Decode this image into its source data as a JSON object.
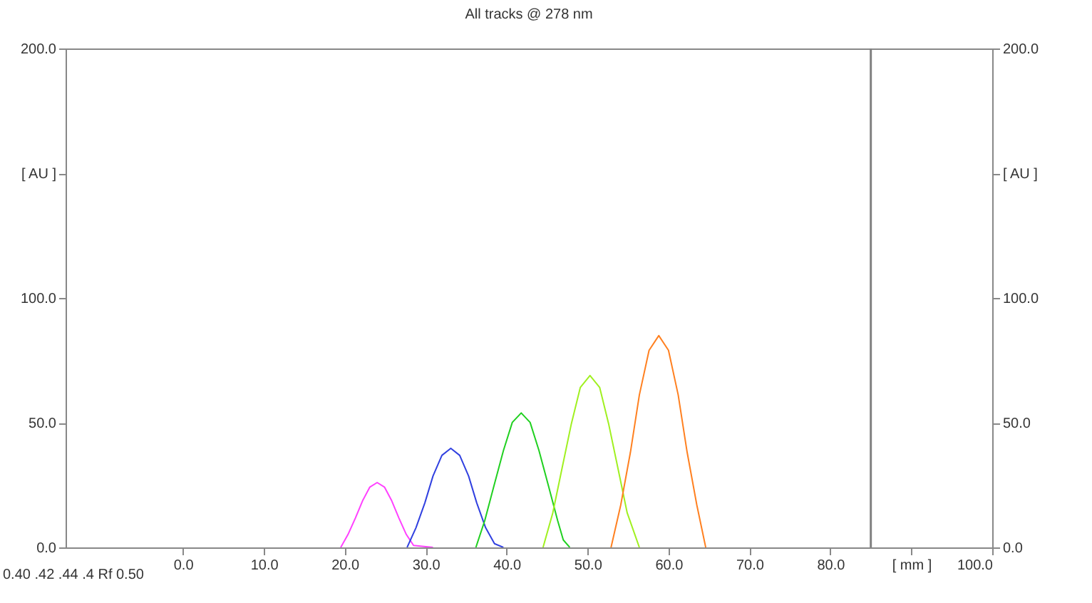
{
  "chart_data": {
    "type": "line",
    "title": "All tracks @ 278 nm",
    "xlim": [
      -14.5,
      100
    ],
    "xticks": [
      {
        "value": 0,
        "label": "0.0"
      },
      {
        "value": 10,
        "label": "10.0"
      },
      {
        "value": 20,
        "label": "20.0"
      },
      {
        "value": 30,
        "label": "30.0"
      },
      {
        "value": 40,
        "label": "40.0"
      },
      {
        "value": 50,
        "label": "50.0"
      },
      {
        "value": 60,
        "label": "60.0"
      },
      {
        "value": 70,
        "label": "70.0"
      },
      {
        "value": 80,
        "label": "80.0"
      },
      {
        "value": 90,
        "label": "[ mm ]"
      },
      {
        "value": 100,
        "label": "100.0"
      }
    ],
    "ylim": [
      0,
      200
    ],
    "yticks": [
      {
        "value": 0,
        "label": "0.0"
      },
      {
        "value": 50,
        "label": "50.0"
      },
      {
        "value": 100,
        "label": "100.0"
      },
      {
        "value": 150,
        "label": "[ AU ]"
      },
      {
        "value": 200,
        "label": "200.0"
      }
    ],
    "y2lim": [
      0,
      200
    ],
    "y2ticks": [
      {
        "value": 0,
        "label": "0.0"
      },
      {
        "value": 50,
        "label": "50.0"
      },
      {
        "value": 100,
        "label": "100.0"
      },
      {
        "value": 150,
        "label": "[ AU ]"
      },
      {
        "value": 200,
        "label": "200.0"
      }
    ],
    "grid": false,
    "ref_lines": [
      {
        "axis": "x",
        "value": 85,
        "label": null,
        "color": "#808080"
      }
    ],
    "annotations": [
      "0.40 .42 .44 .4 Rf 0.50"
    ],
    "series": [
      {
        "color": "#ff40ff",
        "x": [
          19.5,
          20.4,
          21.3,
          22.2,
          23.1,
          24.0,
          24.9,
          25.8,
          26.7,
          27.6,
          28.5,
          30.9
        ],
        "values": [
          0,
          5.2,
          11.7,
          18.7,
          24.2,
          26,
          24.2,
          18.7,
          11.7,
          5.2,
          0.8,
          0
        ]
      },
      {
        "color": "#3040e0",
        "x": [
          27.7,
          28.8,
          29.9,
          30.9,
          32.0,
          33.1,
          34.2,
          35.3,
          36.3,
          37.4,
          38.5,
          39.6
        ],
        "values": [
          0,
          7.9,
          17.9,
          28.6,
          36.9,
          39.7,
          36.9,
          28.6,
          17.9,
          7.9,
          1.5,
          0
        ]
      },
      {
        "color": "#20d020",
        "x": [
          36.2,
          37.3,
          38.4,
          39.6,
          40.7,
          41.8,
          42.9,
          44.0,
          45.2,
          46.3,
          47.0,
          47.8
        ],
        "values": [
          0,
          10.8,
          24.3,
          38.8,
          50.1,
          53.9,
          50.1,
          38.8,
          24.3,
          10.8,
          3,
          0
        ]
      },
      {
        "color": "#a0f020",
        "x": [
          44.5,
          45.7,
          46.8,
          48.0,
          49.1,
          50.3,
          51.5,
          52.6,
          53.8,
          54.9,
          56.4
        ],
        "values": [
          0,
          13.8,
          31,
          49.6,
          64.1,
          68.9,
          64.1,
          49.6,
          31,
          13.8,
          0
        ]
      },
      {
        "color": "#ff8020",
        "x": [
          52.9,
          54.1,
          55.3,
          56.4,
          57.6,
          58.8,
          60.0,
          61.2,
          62.3,
          63.5,
          64.6
        ],
        "values": [
          0,
          17,
          38.2,
          61.1,
          79,
          84.9,
          79,
          61.1,
          38.2,
          17,
          0
        ]
      }
    ]
  }
}
